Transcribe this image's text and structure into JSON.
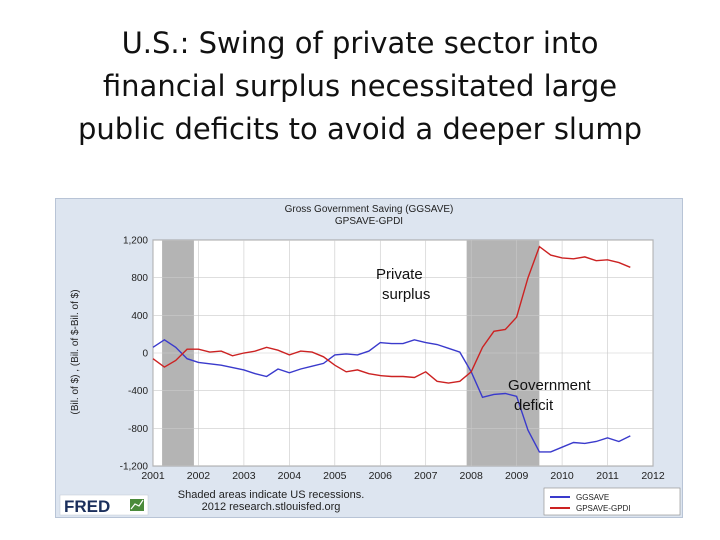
{
  "slide": {
    "title_lines": [
      "U.S.:  Swing of private sector into",
      "financial surplus necessitated large",
      "public deficits to avoid a deeper slump"
    ]
  },
  "chart_data": {
    "type": "line",
    "title": "Gross Government Saving (GGSAVE)",
    "subtitle": "GPSAVE-GPDI",
    "ylabel": "(Bil. of $) , (Bil. of $-Bil. of $)",
    "xlim": [
      2001,
      2012
    ],
    "ylim": [
      -1200,
      1200
    ],
    "x_ticks": [
      "2001",
      "2002",
      "2003",
      "2004",
      "2005",
      "2006",
      "2007",
      "2008",
      "2009",
      "2010",
      "2011",
      "2012"
    ],
    "y_ticks": [
      "1,200",
      "800",
      "400",
      "0",
      "-400",
      "-800",
      "-1,200"
    ],
    "y_tick_values": [
      1200,
      800,
      400,
      0,
      -400,
      -800,
      -1200
    ],
    "recessions": [
      [
        2001.2,
        2001.9
      ],
      [
        2007.9,
        2009.5
      ]
    ],
    "series": [
      {
        "name": "GGSAVE",
        "color": "#3a3acc",
        "x": [
          2001.0,
          2001.25,
          2001.5,
          2001.75,
          2002.0,
          2002.5,
          2003.0,
          2003.25,
          2003.5,
          2003.75,
          2004.0,
          2004.25,
          2004.5,
          2004.75,
          2005.0,
          2005.25,
          2005.5,
          2005.75,
          2006.0,
          2006.25,
          2006.5,
          2006.75,
          2007.0,
          2007.25,
          2007.5,
          2007.75,
          2008.0,
          2008.25,
          2008.5,
          2008.75,
          2009.0,
          2009.25,
          2009.5,
          2009.75,
          2010.0,
          2010.25,
          2010.5,
          2010.75,
          2011.0,
          2011.25,
          2011.5
        ],
        "values": [
          60,
          140,
          60,
          -60,
          -100,
          -130,
          -180,
          -220,
          -250,
          -170,
          -210,
          -170,
          -140,
          -110,
          -20,
          -10,
          -20,
          20,
          110,
          100,
          100,
          140,
          110,
          90,
          50,
          10,
          -200,
          -470,
          -440,
          -430,
          -460,
          -820,
          -1050,
          -1050,
          -1000,
          -950,
          -960,
          -940,
          -900,
          -940,
          -880
        ]
      },
      {
        "name": "GPSAVE-GPDI",
        "color": "#cc2222",
        "x": [
          2001.0,
          2001.25,
          2001.5,
          2001.75,
          2002.0,
          2002.25,
          2002.5,
          2002.75,
          2003.0,
          2003.25,
          2003.5,
          2003.75,
          2004.0,
          2004.25,
          2004.5,
          2004.75,
          2005.0,
          2005.25,
          2005.5,
          2005.75,
          2006.0,
          2006.25,
          2006.5,
          2006.75,
          2007.0,
          2007.25,
          2007.5,
          2007.75,
          2008.0,
          2008.25,
          2008.5,
          2008.75,
          2009.0,
          2009.25,
          2009.5,
          2009.75,
          2010.0,
          2010.25,
          2010.5,
          2010.75,
          2011.0,
          2011.25,
          2011.5
        ],
        "values": [
          -60,
          -150,
          -80,
          40,
          40,
          10,
          20,
          -30,
          0,
          20,
          60,
          30,
          -20,
          20,
          10,
          -40,
          -130,
          -200,
          -180,
          -220,
          -240,
          -250,
          -250,
          -260,
          -200,
          -300,
          -320,
          -300,
          -200,
          60,
          230,
          250,
          380,
          800,
          1130,
          1040,
          1010,
          1000,
          1020,
          980,
          990,
          960,
          910
        ]
      }
    ],
    "annotations": [
      {
        "text_lines": [
          "Private",
          "surplus"
        ]
      },
      {
        "text_lines": [
          "Government",
          "deficit"
        ]
      }
    ],
    "footer": {
      "logo": "FRED",
      "note_lines": [
        "Shaded areas indicate US recessions.",
        "2012 research.stlouisfed.org"
      ]
    },
    "grid": true,
    "legend_position": "bottom-right"
  }
}
